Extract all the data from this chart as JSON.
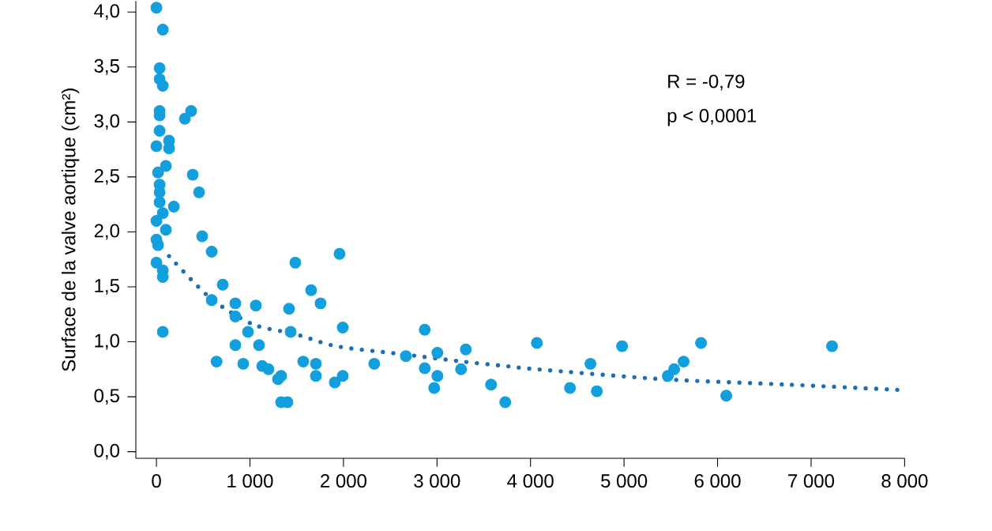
{
  "chart_data": {
    "type": "scatter",
    "ylabel": "Surface de la valve aortique (cm²)",
    "annotations": [
      "R = -0,79",
      "p < 0,0001"
    ],
    "xlim": [
      -220,
      8000
    ],
    "ylim": [
      -0.06,
      4.1
    ],
    "xticks": [
      {
        "value": 0,
        "label": "0"
      },
      {
        "value": 1000,
        "label": "1 000"
      },
      {
        "value": 2000,
        "label": "2 000"
      },
      {
        "value": 3000,
        "label": "3 000"
      },
      {
        "value": 4000,
        "label": "4 000"
      },
      {
        "value": 5000,
        "label": "5 000"
      },
      {
        "value": 6000,
        "label": "6 000"
      },
      {
        "value": 7000,
        "label": "7 000"
      },
      {
        "value": 8000,
        "label": "8 000"
      }
    ],
    "yticks": [
      {
        "value": 0,
        "label": "0,0"
      },
      {
        "value": 0.5,
        "label": "0,5"
      },
      {
        "value": 1,
        "label": "1,0"
      },
      {
        "value": 1.5,
        "label": "1,5"
      },
      {
        "value": 2,
        "label": "2,0"
      },
      {
        "value": 2.5,
        "label": "2,5"
      },
      {
        "value": 3,
        "label": "3,0"
      },
      {
        "value": 3.5,
        "label": "3,5"
      },
      {
        "value": 4,
        "label": "4,0"
      }
    ],
    "series": [
      {
        "marker": "circle",
        "color": "#139fdd",
        "x": [
          0,
          68,
          34,
          34,
          68,
          34,
          34,
          304,
          371,
          34,
          0,
          135,
          135,
          101,
          17,
          388,
          34,
          34,
          456,
          34,
          186,
          68,
          0,
          101,
          489,
          0,
          17,
          591,
          1485,
          1958,
          0,
          68,
          68,
          68,
          591,
          709,
          844,
          844,
          1063,
          979,
          844,
          1097,
          643,
          928,
          1131,
          1198,
          1300,
          1333,
          1333,
          1401,
          1418,
          1435,
          1570,
          1654,
          1705,
          1705,
          1755,
          1907,
          1992,
          1992,
          2329,
          2667,
          2869,
          2869,
          3004,
          3004,
          2970,
          3257,
          3308,
          3578,
          3730,
          4068,
          4422,
          4641,
          4709,
          4979,
          5468,
          5536,
          5637,
          5823,
          6093,
          7224
        ],
        "values": [
          4.04,
          3.84,
          3.49,
          3.39,
          3.33,
          3.1,
          3.06,
          3.03,
          3.1,
          2.92,
          2.78,
          2.83,
          2.76,
          2.6,
          2.54,
          2.52,
          2.43,
          2.36,
          2.36,
          2.27,
          2.23,
          2.17,
          2.1,
          2.02,
          1.96,
          1.93,
          1.88,
          1.82,
          1.72,
          1.8,
          1.72,
          1.65,
          1.59,
          1.09,
          1.38,
          1.52,
          1.35,
          1.23,
          1.33,
          1.09,
          0.97,
          0.97,
          0.82,
          0.8,
          0.78,
          0.75,
          0.66,
          0.69,
          0.45,
          0.45,
          1.3,
          1.09,
          0.82,
          1.47,
          0.8,
          0.69,
          1.35,
          0.63,
          1.13,
          0.69,
          0.8,
          0.87,
          1.11,
          0.76,
          0.9,
          0.69,
          0.58,
          0.75,
          0.93,
          0.61,
          0.45,
          0.99,
          0.58,
          0.8,
          0.55,
          0.96,
          0.69,
          0.75,
          0.82,
          0.99,
          0.51,
          0.96
        ]
      },
      {
        "type": "line",
        "marker": "none",
        "line_style": "dotted",
        "color": "#1d6db4",
        "x": [
          135,
          574,
          1030,
          1485,
          1924,
          2600,
          3274,
          3730,
          4068,
          5418,
          6768,
          8000
        ],
        "values": [
          1.78,
          1.4,
          1.16,
          1.07,
          0.96,
          0.89,
          0.82,
          0.78,
          0.75,
          0.66,
          0.61,
          0.56
        ]
      }
    ]
  }
}
